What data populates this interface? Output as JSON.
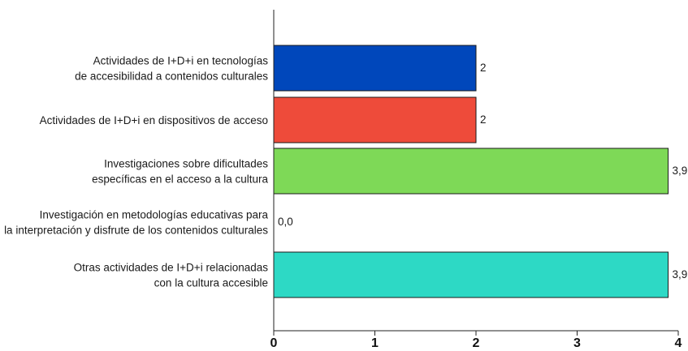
{
  "chart_data": {
    "type": "bar",
    "orientation": "horizontal",
    "categories": [
      [
        "Actividades de I+D+i en tecnologías",
        "de accesibilidad a contenidos culturales"
      ],
      [
        "Actividades de I+D+i en dispositivos de acceso"
      ],
      [
        "Investigaciones sobre dificultades",
        "específicas en el acceso a la cultura"
      ],
      [
        "Investigación en metodologías educativas para",
        "la interpretación y disfrute de los contenidos culturales"
      ],
      [
        "Otras actividades de I+D+i relacionadas",
        "con la cultura accesible"
      ]
    ],
    "values": [
      2,
      2,
      3.9,
      0.0,
      3.9
    ],
    "value_labels": [
      "2",
      "2",
      "3,9",
      "0,0",
      "3,9"
    ],
    "colors": [
      "#0047bb",
      "#ee4b3a",
      "#7ed957",
      "#ffffff",
      "#2dd9c5"
    ],
    "xlim": [
      0,
      4
    ],
    "xticks": [
      0,
      1,
      2,
      3,
      4
    ],
    "xtick_labels": [
      "0",
      "1",
      "2",
      "3",
      "4"
    ],
    "title": "",
    "xlabel": "",
    "ylabel": "",
    "grid": false,
    "legend": "none"
  }
}
